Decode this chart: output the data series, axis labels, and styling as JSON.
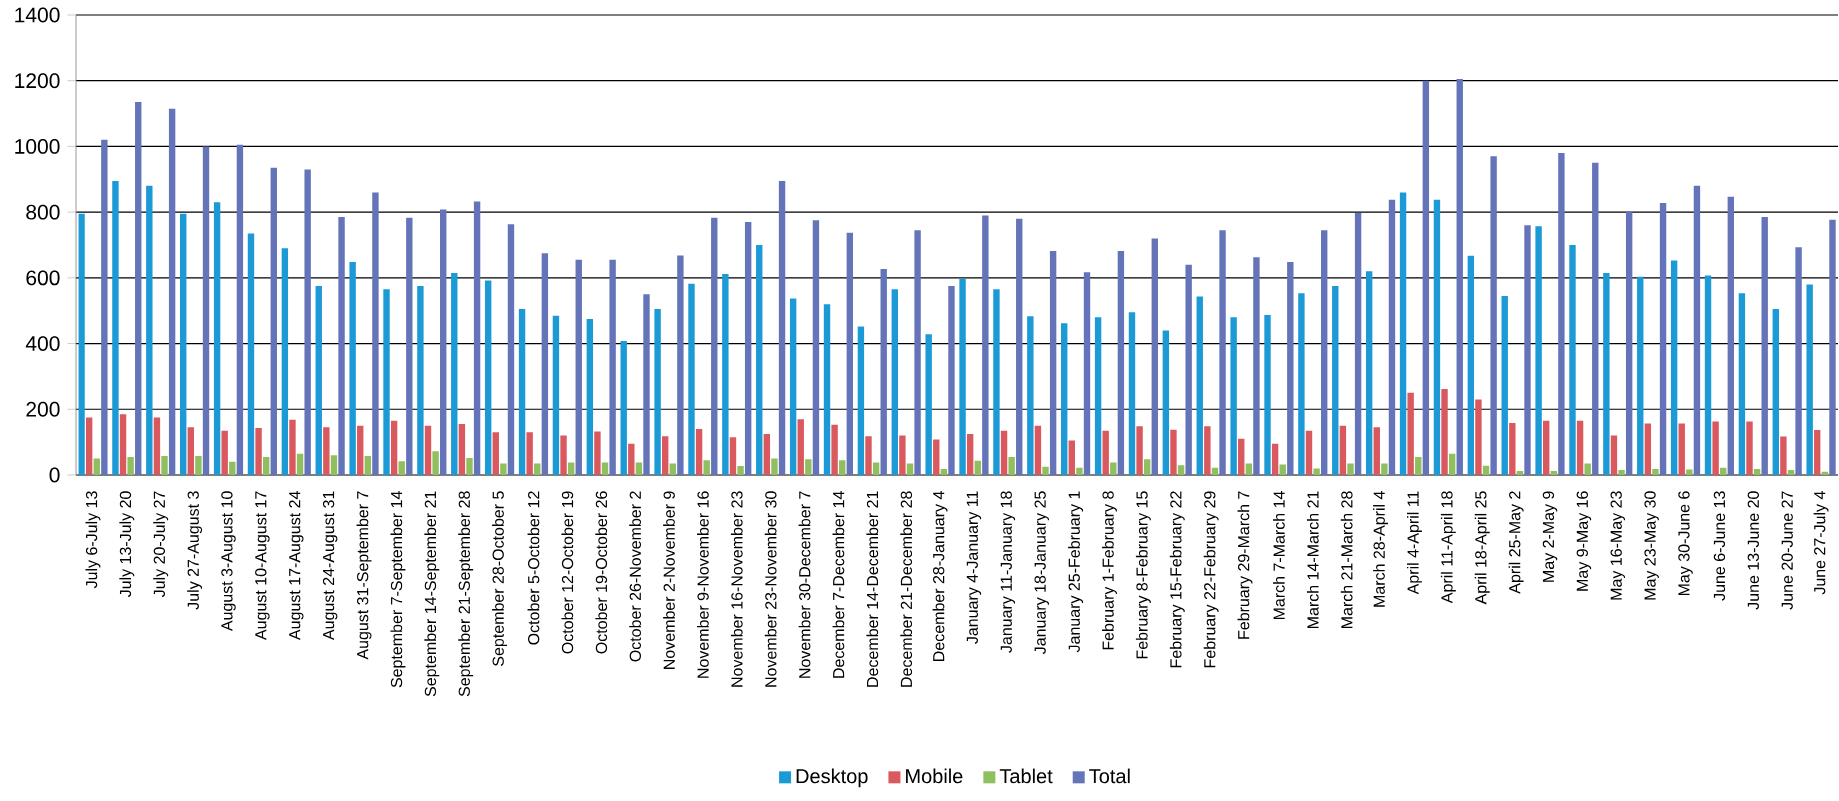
{
  "chart_data": {
    "type": "bar",
    "categories": [
      "July 6-July 13",
      "July 13-July 20",
      "July 20-July 27",
      "July 27-August 3",
      "August 3-August 10",
      "August 10-August 17",
      "August 17-August 24",
      "August 24-August 31",
      "August 31-September 7",
      "September 7-September 14",
      "September 14-September 21",
      "September 21-September 28",
      "September 28-October 5",
      "October 5-October 12",
      "October 12-October 19",
      "October 19-October 26",
      "October 26-November 2",
      "November 2-November 9",
      "November 9-November 16",
      "November 16-November 23",
      "November 23-November 30",
      "November 30-December 7",
      "December 7-December 14",
      "December 14-December 21",
      "December 21-December 28",
      "December 28-January 4",
      "January 4-January 11",
      "January 11-January 18",
      "January 18-January 25",
      "January 25-February 1",
      "February 1-February 8",
      "February 8-February 15",
      "February 15-February 22",
      "February 22-February 29",
      "February 29-March 7",
      "March 7-March 14",
      "March 14-March 21",
      "March 21-March 28",
      "March 28-April 4",
      "April 4-April 11",
      "April 11-April 18",
      "April 18-April 25",
      "April 25-May 2",
      "May 2-May 9",
      "May 9-May 16",
      "May 16-May 23",
      "May 23-May 30",
      "May 30-June 6",
      "June 6-June 13",
      "June 13-June 20",
      "June 20-June 27",
      "June 27-July 4"
    ],
    "series": [
      {
        "name": "Desktop",
        "color": "#1c9ad6",
        "values": [
          795,
          895,
          880,
          795,
          830,
          735,
          690,
          575,
          648,
          565,
          575,
          615,
          592,
          505,
          485,
          475,
          408,
          505,
          582,
          612,
          700,
          537,
          520,
          452,
          565,
          428,
          597,
          565,
          483,
          462,
          480,
          495,
          440,
          543,
          480,
          487,
          553,
          575,
          620,
          860,
          838,
          667,
          545,
          757,
          700,
          615,
          603,
          653,
          607,
          553,
          505,
          580
        ]
      },
      {
        "name": "Mobile",
        "color": "#d9595f",
        "values": [
          175,
          185,
          175,
          145,
          135,
          143,
          168,
          145,
          150,
          165,
          150,
          155,
          130,
          130,
          120,
          132,
          95,
          118,
          140,
          115,
          125,
          170,
          153,
          118,
          120,
          108,
          125,
          135,
          150,
          105,
          135,
          148,
          138,
          148,
          110,
          95,
          135,
          150,
          145,
          250,
          262,
          230,
          158,
          165,
          165,
          120,
          157,
          157,
          163,
          163,
          117,
          137
        ]
      },
      {
        "name": "Tablet",
        "color": "#8fbf5f",
        "values": [
          50,
          55,
          58,
          58,
          40,
          55,
          65,
          60,
          58,
          42,
          72,
          52,
          35,
          35,
          38,
          38,
          38,
          35,
          45,
          27,
          50,
          48,
          45,
          38,
          35,
          18,
          43,
          55,
          25,
          22,
          38,
          48,
          30,
          22,
          35,
          32,
          20,
          35,
          35,
          55,
          65,
          28,
          12,
          12,
          35,
          15,
          18,
          17,
          22,
          18,
          15,
          10
        ]
      },
      {
        "name": "Total",
        "color": "#6574b8",
        "values": [
          1020,
          1135,
          1115,
          1000,
          1005,
          935,
          930,
          785,
          860,
          783,
          808,
          832,
          763,
          675,
          655,
          655,
          550,
          668,
          783,
          770,
          895,
          775,
          737,
          627,
          745,
          575,
          790,
          780,
          682,
          617,
          682,
          720,
          640,
          745,
          663,
          648,
          745,
          797,
          838,
          1200,
          1205,
          970,
          760,
          980,
          950,
          802,
          828,
          880,
          847,
          785,
          693,
          777
        ]
      }
    ],
    "ylim": [
      0,
      1400
    ],
    "yticks": [
      0,
      200,
      400,
      600,
      800,
      1000,
      1200,
      1400
    ],
    "grid": "y",
    "legend": "bottom"
  }
}
